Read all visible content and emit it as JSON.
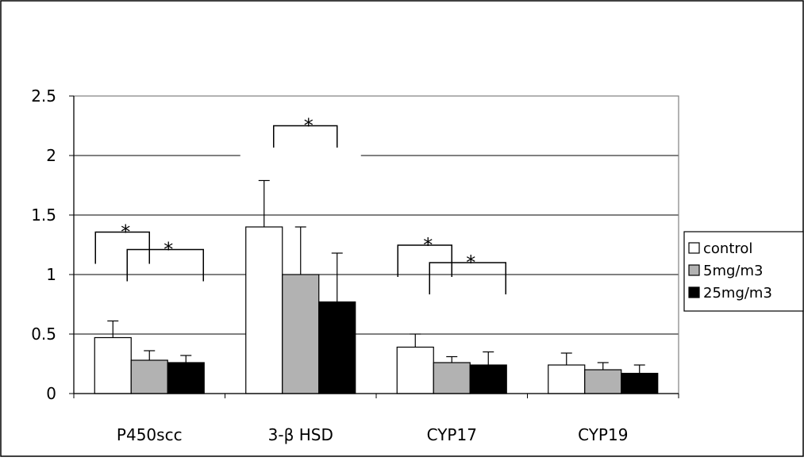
{
  "chart_data": {
    "type": "bar",
    "categories": [
      "P450scc",
      "3-β HSD",
      "CYP17",
      "CYP19"
    ],
    "series": [
      {
        "name": "control",
        "color": "#ffffff",
        "values": [
          0.47,
          1.4,
          0.39,
          0.24
        ],
        "errors": [
          0.14,
          0.39,
          0.11,
          0.1
        ]
      },
      {
        "name": "5mg/m3",
        "color": "#b2b2b2",
        "values": [
          0.28,
          1.0,
          0.26,
          0.2
        ],
        "errors": [
          0.08,
          0.4,
          0.05,
          0.06
        ]
      },
      {
        "name": "25mg/m3",
        "color": "#000000",
        "values": [
          0.26,
          0.77,
          0.24,
          0.17
        ],
        "errors": [
          0.06,
          0.41,
          0.11,
          0.07
        ]
      }
    ],
    "ylim": [
      0,
      2.5
    ],
    "yticks": [
      "0",
      "0.5",
      "1",
      "1.5",
      "2",
      "2.5"
    ],
    "ytick_values": [
      0,
      0.5,
      1,
      1.5,
      2,
      2.5
    ],
    "grid": true,
    "legend_position": "right",
    "significance_mark": "*",
    "significance_brackets": [
      {
        "category": 0,
        "from": 0,
        "to": 1
      },
      {
        "category": 0,
        "from": 0,
        "to": 2
      },
      {
        "category": 1,
        "from": 0,
        "to": 2
      },
      {
        "category": 2,
        "from": 0,
        "to": 1
      },
      {
        "category": 2,
        "from": 0,
        "to": 2
      }
    ],
    "title": "",
    "xlabel": "",
    "ylabel": ""
  }
}
